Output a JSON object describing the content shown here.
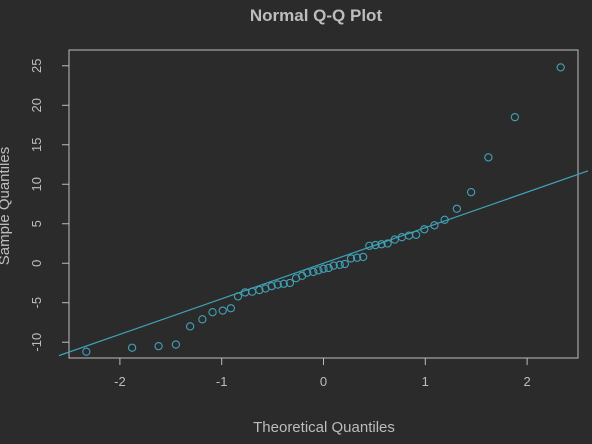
{
  "chart_data": {
    "type": "scatter",
    "title": "Normal Q-Q Plot",
    "xlabel": "Theoretical Quantiles",
    "ylabel": "Sample Quantiles",
    "xlim": [
      -2.5,
      2.5
    ],
    "ylim": [
      -12,
      27
    ],
    "x_ticks": [
      -2,
      -1,
      0,
      1,
      2
    ],
    "y_ticks": [
      -10,
      -5,
      0,
      5,
      10,
      15,
      20,
      25
    ],
    "grid": false,
    "colors": {
      "background": "#2b2b2b",
      "box": "#bdbdbd",
      "text": "#bdbdbd",
      "series": "#3fa3b8"
    },
    "series": [
      {
        "points": [
          [
            -2.33,
            -11.2
          ],
          [
            -1.88,
            -10.7
          ],
          [
            -1.62,
            -10.5
          ],
          [
            -1.45,
            -10.3
          ],
          [
            -1.31,
            -8.0
          ],
          [
            -1.19,
            -7.1
          ],
          [
            -1.09,
            -6.2
          ],
          [
            -0.99,
            -6.0
          ],
          [
            -0.91,
            -5.7
          ],
          [
            -0.84,
            -4.2
          ],
          [
            -0.77,
            -3.7
          ],
          [
            -0.7,
            -3.6
          ],
          [
            -0.63,
            -3.4
          ],
          [
            -0.57,
            -3.2
          ],
          [
            -0.51,
            -2.9
          ],
          [
            -0.45,
            -2.7
          ],
          [
            -0.39,
            -2.6
          ],
          [
            -0.33,
            -2.5
          ],
          [
            -0.27,
            -1.9
          ],
          [
            -0.21,
            -1.6
          ],
          [
            -0.16,
            -1.2
          ],
          [
            -0.1,
            -1.1
          ],
          [
            -0.05,
            -0.9
          ],
          [
            0.0,
            -0.7
          ],
          [
            0.05,
            -0.6
          ],
          [
            0.1,
            -0.3
          ],
          [
            0.16,
            -0.2
          ],
          [
            0.21,
            -0.1
          ],
          [
            0.27,
            0.6
          ],
          [
            0.33,
            0.7
          ],
          [
            0.39,
            0.8
          ],
          [
            0.45,
            2.2
          ],
          [
            0.51,
            2.3
          ],
          [
            0.57,
            2.4
          ],
          [
            0.63,
            2.5
          ],
          [
            0.7,
            3.0
          ],
          [
            0.77,
            3.3
          ],
          [
            0.84,
            3.5
          ],
          [
            0.91,
            3.6
          ],
          [
            0.99,
            4.3
          ],
          [
            1.09,
            4.8
          ],
          [
            1.19,
            5.5
          ],
          [
            1.31,
            6.9
          ],
          [
            1.45,
            9.0
          ],
          [
            1.62,
            13.4
          ],
          [
            1.88,
            18.5
          ],
          [
            2.33,
            24.8
          ]
        ]
      }
    ],
    "reference_line": {
      "slope": 4.5,
      "intercept": 0.0
    }
  }
}
